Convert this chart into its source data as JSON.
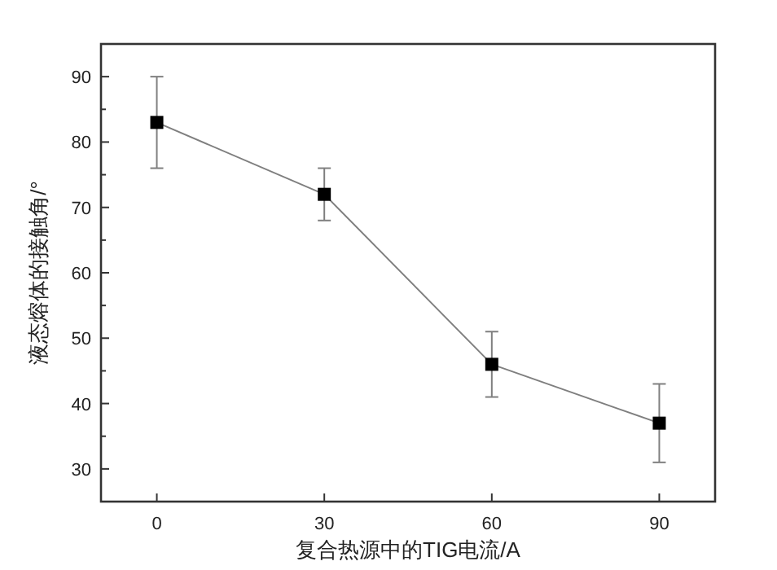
{
  "chart_data": {
    "type": "line",
    "xlabel": "复合热源中的TIG电流/A",
    "ylabel": "液态熔体的接触角/°",
    "x": [
      0,
      30,
      60,
      90
    ],
    "series": [
      {
        "color": "#7f7f7f",
        "values": [
          83,
          72,
          46,
          37
        ],
        "errors": [
          [
            76,
            90
          ],
          [
            68,
            76
          ],
          [
            41,
            51
          ],
          [
            31,
            43
          ]
        ]
      }
    ],
    "xlim": [
      -10,
      100
    ],
    "xticks": [
      0,
      30,
      60,
      90
    ],
    "ylim": [
      25,
      95
    ],
    "yticks": [
      30,
      {
        "value": 35,
        "label": null
      },
      40,
      {
        "value": 45,
        "label": null
      },
      50,
      {
        "value": 55,
        "label": null
      },
      60,
      {
        "value": 65,
        "label": null
      },
      70,
      {
        "value": 75,
        "label": null
      },
      80,
      {
        "value": 85,
        "label": null
      },
      90
    ],
    "marker": "square",
    "line_style": "solid",
    "grid": false
  }
}
